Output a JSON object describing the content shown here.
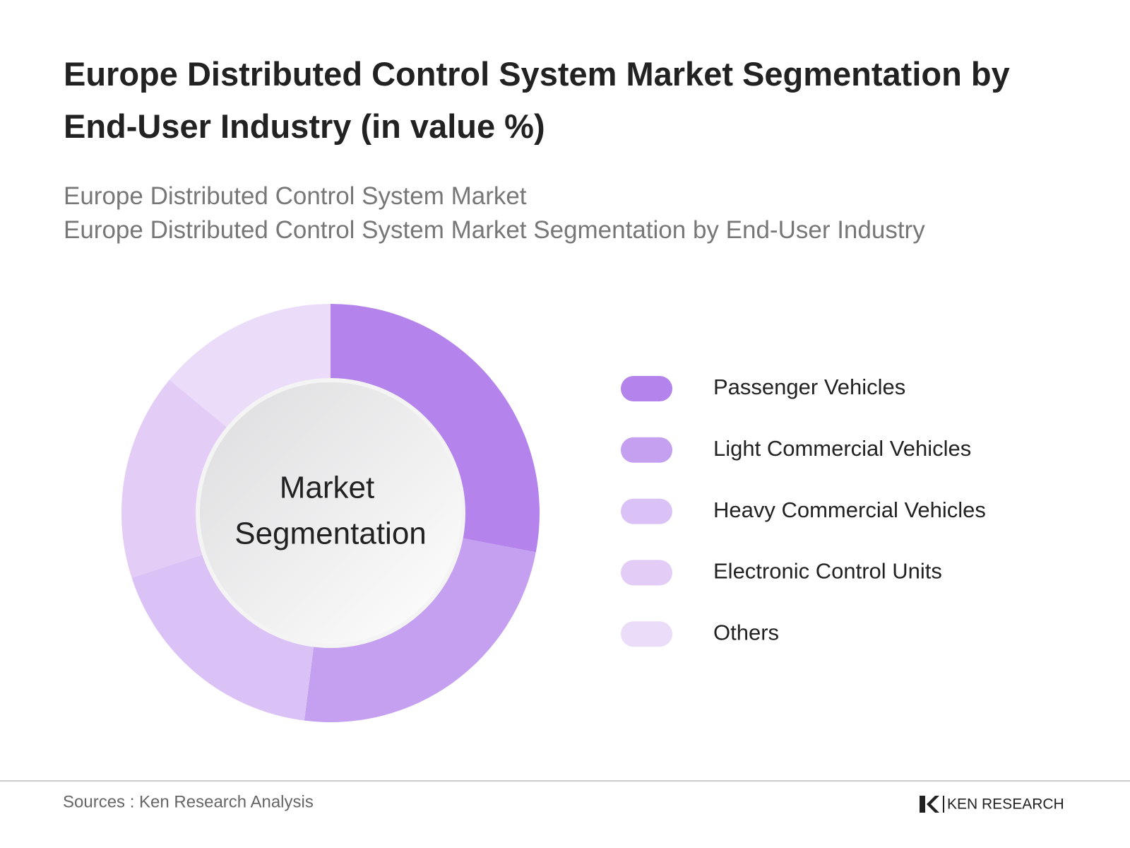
{
  "chart_data": {
    "type": "donut",
    "title": "Europe Distributed Control System Market Segmentation by End-User Industry (in value %)",
    "subtitle": [
      "Europe Distributed Control System Market",
      "Europe Distributed Control System Market Segmentation by End-User Industry"
    ],
    "center_label": [
      "Market",
      "Segmentation"
    ],
    "categories": [
      "Passenger Vehicles",
      "Light Commercial Vehicles",
      "Heavy Commercial Vehicles",
      "Electronic Control Units",
      "Others"
    ],
    "values": [
      28,
      24,
      18,
      16,
      14
    ],
    "colors": [
      "#b484ec",
      "#c59ff0",
      "#dbc2f6",
      "#e3cdf7",
      "#ebdcf9"
    ]
  },
  "footer": {
    "source": "Sources : Ken Research Analysis",
    "logo": "KEN RESEARCH"
  }
}
